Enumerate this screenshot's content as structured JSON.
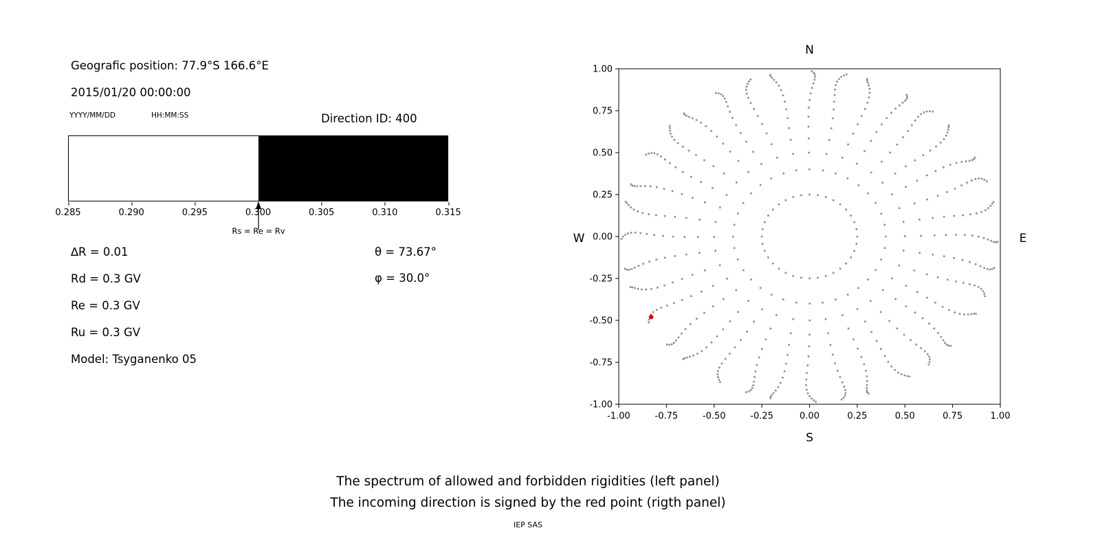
{
  "page": {
    "background": "#ffffff",
    "caption_line1": "The spectrum of allowed and forbidden rigidities (left panel)",
    "caption_line2": "The incoming direction is signed by the red point (rigth panel)",
    "credit": "IEP SAS"
  },
  "left_panel": {
    "position": "Geografic position: 77.9°S 166.6°E",
    "datetime": "2015/01/20 00:00:00",
    "date_format": "YYYY/MM/DD",
    "time_format": "HH:MM:SS",
    "direction_id": "Direction ID: 400",
    "arrow_label": "Rs = Re = Rv",
    "params": [
      "∆R = 0.01",
      "Rd = 0.3 GV",
      "Re = 0.3 GV",
      "Ru = 0.3 GV",
      "Model: Tsyganenko 05"
    ],
    "theta": "θ = 73.67°",
    "phi": "φ = 30.0°"
  },
  "chart_data": [
    {
      "type": "bar",
      "x_range": [
        0.285,
        0.315
      ],
      "x_ticks": [
        "0.285",
        "0.290",
        "0.295",
        "0.300",
        "0.305",
        "0.310",
        "0.315"
      ],
      "segments": [
        {
          "name": "allowed",
          "from": 0.285,
          "to": 0.3,
          "color": "#ffffff"
        },
        {
          "name": "forbidden",
          "from": 0.3,
          "to": 0.315,
          "color": "#000000"
        }
      ],
      "cutoff": {
        "x": 0.3,
        "label": "Rs = Re = Rv"
      }
    },
    {
      "type": "scatter",
      "compass": {
        "n": "N",
        "s": "S",
        "e": "E",
        "w": "W"
      },
      "xlim": [
        -1,
        1
      ],
      "ylim": [
        -1,
        1
      ],
      "x_ticks": [
        "-1.00",
        "-0.75",
        "-0.50",
        "-0.25",
        "0.00",
        "0.25",
        "0.50",
        "0.75",
        "1.00"
      ],
      "y_ticks": [
        "1.00",
        "0.75",
        "0.50",
        "0.25",
        "0.00",
        "-0.25",
        "-0.50",
        "-0.75",
        "-1.00"
      ],
      "spokes": {
        "count": 36,
        "angle_step_deg": 10,
        "r_inner": 0.25,
        "r_outer": 1.0,
        "radii": [
          0.25,
          0.4,
          0.5,
          0.585,
          0.655,
          0.715,
          0.768,
          0.814,
          0.853,
          0.886,
          0.913,
          0.935,
          0.952,
          0.966,
          0.977,
          0.986
        ],
        "wiggle_deg": 2.2,
        "color": "#8c8c8c",
        "marker_size": 2.6
      },
      "red_point": {
        "x": -0.83,
        "y": -0.48,
        "color": "#dd0000"
      }
    }
  ]
}
